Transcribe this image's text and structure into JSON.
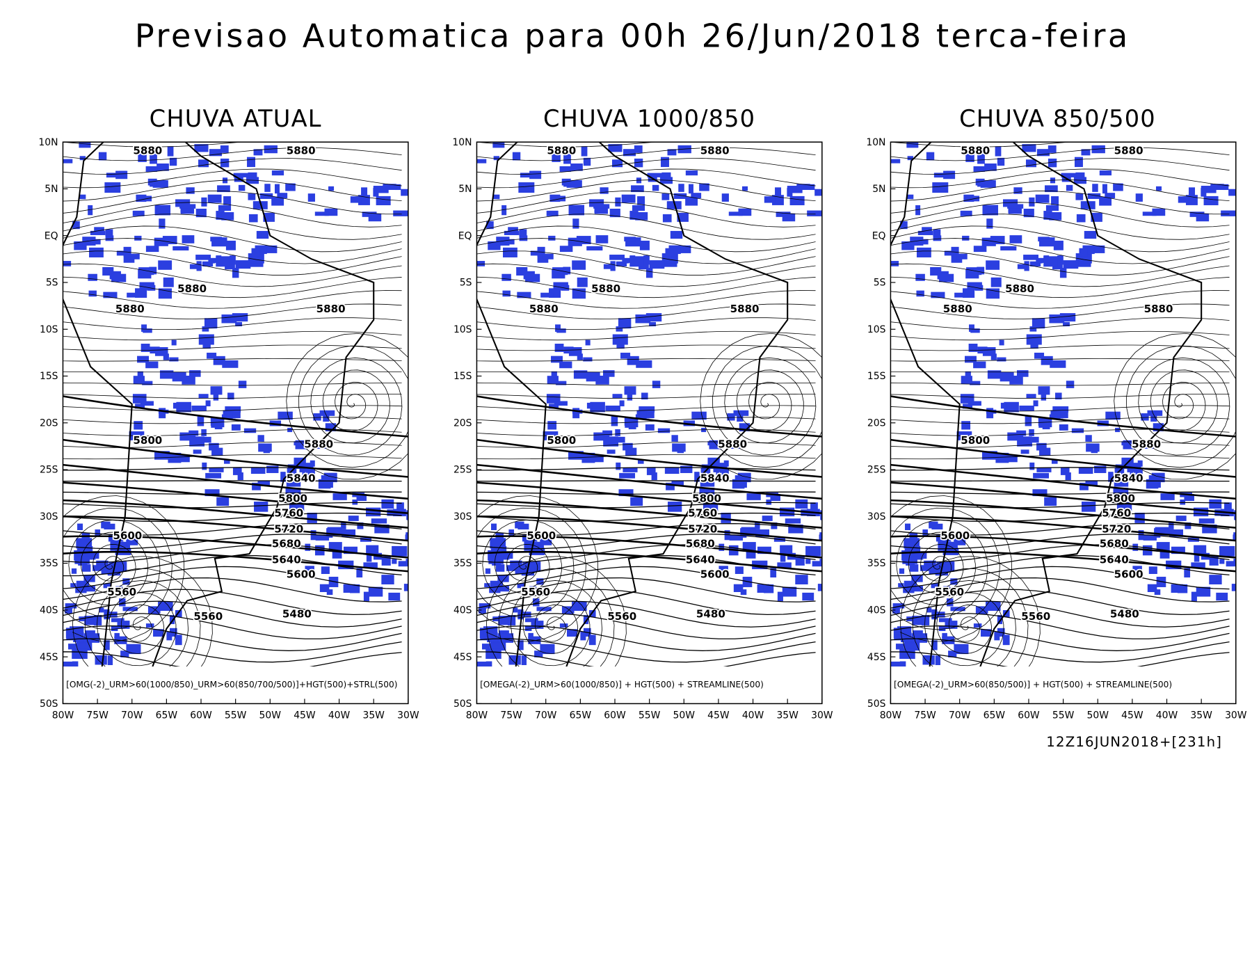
{
  "title": "Previsao Automatica para 00h 26/Jun/2018 terca-feira",
  "x_ticks": [
    "80W",
    "75W",
    "70W",
    "65W",
    "60W",
    "55W",
    "50W",
    "45W",
    "40W",
    "35W",
    "30W"
  ],
  "y_ticks": [
    "10N",
    "5N",
    "EQ",
    "5S",
    "10S",
    "15S",
    "20S",
    "25S",
    "30S",
    "35S",
    "40S",
    "45S",
    "50S"
  ],
  "panels": [
    {
      "title": "CHUVA ATUAL",
      "caption": "[OMG(-2)_URM>60(1000/850)_URM>60(850/700/500)]+HGT(500)+STRL(500)",
      "contour_labels": [
        "5880",
        "5880",
        "5880",
        "5880",
        "5880",
        "5800",
        "5880",
        "5840",
        "5800",
        "5760",
        "5720",
        "5680",
        "5640",
        "5600",
        "5600",
        "5560",
        "5560",
        "5480"
      ]
    },
    {
      "title": "CHUVA 1000/850",
      "caption": "[OMEGA(-2)_URM>60(1000/850)] + HGT(500) + STREAMLINE(500)",
      "contour_labels": [
        "5880",
        "5880",
        "5880",
        "5880",
        "5880",
        "5800",
        "5880",
        "5840",
        "5800",
        "5760",
        "5720",
        "5680",
        "5640",
        "5600",
        "5600",
        "5560",
        "5560",
        "5480"
      ]
    },
    {
      "title": "CHUVA 850/500",
      "caption": "[OMEGA(-2)_URM>60(850/500)] + HGT(500) + STREAMLINE(500)",
      "contour_labels": [
        "5880",
        "5880",
        "5880",
        "5880",
        "5880",
        "5800",
        "5880",
        "5840",
        "5800",
        "5760",
        "5720",
        "5680",
        "5640",
        "5600",
        "5600",
        "5560",
        "5560",
        "5480"
      ]
    }
  ],
  "footer": "12Z16JUN2018+[231h]"
}
